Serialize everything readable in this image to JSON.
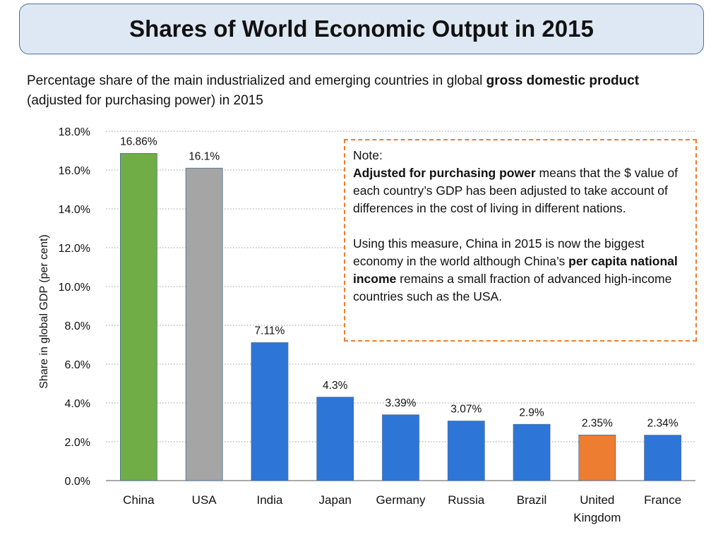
{
  "header": {
    "title": "Shares of World Economic Output in 2015"
  },
  "subtitle": {
    "part1": "Percentage share of the main industrialized and emerging countries in global ",
    "bold1": "gross domestic product",
    "part2": " (adjusted for purchasing power) in 2015"
  },
  "note": {
    "heading": "Note:",
    "p1_bold": "Adjusted for purchasing power",
    "p1_rest": " means that the $ value of each country’s GDP has been adjusted to take account of differences in the cost of living in different nations.",
    "p2_a": "Using this measure, China in 2015 is now the biggest economy in the world although China’s ",
    "p2_bold": "per capita national income",
    "p2_b": " remains a small fraction of advanced high-income countries such as the USA."
  },
  "chart_data": {
    "type": "bar",
    "title": "",
    "xlabel": "",
    "ylabel": "Share in global GDP (per cent)",
    "ylim": [
      0,
      18
    ],
    "ytick_step": 2,
    "ytick_labels": [
      "0.0%",
      "2.0%",
      "4.0%",
      "6.0%",
      "8.0%",
      "10.0%",
      "12.0%",
      "14.0%",
      "16.0%",
      "18.0%"
    ],
    "grid": "horizontal-dotted",
    "categories": [
      "China",
      "USA",
      "India",
      "Japan",
      "Germany",
      "Russia",
      "Brazil",
      "United Kingdom",
      "France"
    ],
    "category_lines": [
      [
        "China"
      ],
      [
        "USA"
      ],
      [
        "India"
      ],
      [
        "Japan"
      ],
      [
        "Germany"
      ],
      [
        "Russia"
      ],
      [
        "Brazil"
      ],
      [
        "United",
        "Kingdom"
      ],
      [
        "France"
      ]
    ],
    "values": [
      16.86,
      16.1,
      7.11,
      4.3,
      3.39,
      3.07,
      2.9,
      2.35,
      2.34
    ],
    "data_labels": [
      "16.86%",
      "16.1%",
      "7.11%",
      "4.3%",
      "3.39%",
      "3.07%",
      "2.9%",
      "2.35%",
      "2.34%"
    ],
    "colors": [
      "#70ad47",
      "#a5a5a5",
      "#2e75d8",
      "#2e75d8",
      "#2e75d8",
      "#2e75d8",
      "#2e75d8",
      "#ed7d31",
      "#2e75d8"
    ]
  }
}
